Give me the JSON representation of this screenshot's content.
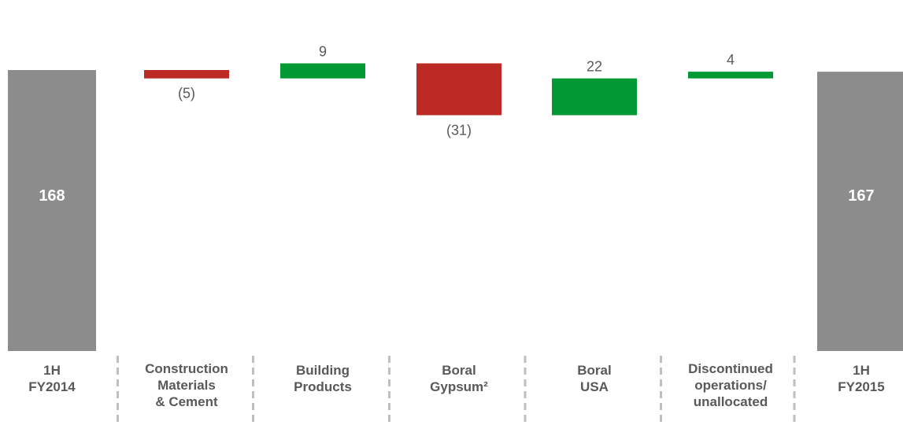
{
  "chart_data": {
    "type": "waterfall",
    "categories": [
      {
        "lines": [
          "1H",
          "FY2014"
        ],
        "kind": "total"
      },
      {
        "lines": [
          "Construction",
          "Materials",
          "& Cement"
        ],
        "kind": "delta"
      },
      {
        "lines": [
          "Building",
          "Products"
        ],
        "kind": "delta"
      },
      {
        "lines": [
          "Boral",
          "Gypsum²"
        ],
        "kind": "delta"
      },
      {
        "lines": [
          "Boral",
          "USA"
        ],
        "kind": "delta"
      },
      {
        "lines": [
          "Discontinued",
          "operations/",
          "unallocated"
        ],
        "kind": "delta"
      },
      {
        "lines": [
          "1H",
          "FY2015"
        ],
        "kind": "total"
      }
    ],
    "values": [
      168,
      -5,
      9,
      -31,
      22,
      4,
      167
    ],
    "value_labels": [
      "168",
      "(5)",
      "9",
      "(31)",
      "22",
      "4",
      "167"
    ],
    "colors": {
      "total": "#8c8c8c",
      "increase": "#009933",
      "decrease": "#bb2a24",
      "label": "#595959",
      "separator": "#bfbfbf"
    }
  }
}
